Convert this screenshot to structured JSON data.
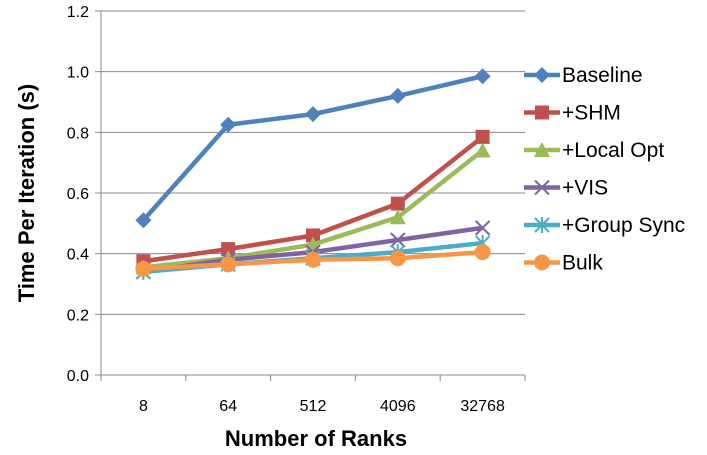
{
  "chart_data": {
    "type": "line",
    "title": "",
    "xlabel": "Number of Ranks",
    "ylabel": "Time Per Iteration (s)",
    "categories": [
      "8",
      "64",
      "512",
      "4096",
      "32768"
    ],
    "ylim": [
      0,
      1.2
    ],
    "yticks": [
      "0.0",
      "0.2",
      "0.4",
      "0.6",
      "0.8",
      "1.0",
      "1.2"
    ],
    "grid": true,
    "legend_position": "right",
    "series": [
      {
        "name": "Baseline",
        "color": "#4F81BD",
        "marker": "diamond",
        "values": [
          0.51,
          0.825,
          0.86,
          0.92,
          0.985
        ]
      },
      {
        "name": "+SHM",
        "color": "#C0504D",
        "marker": "square",
        "values": [
          0.375,
          0.415,
          0.46,
          0.565,
          0.785
        ]
      },
      {
        "name": "+Local Opt",
        "color": "#9BBB59",
        "marker": "triangle",
        "values": [
          0.355,
          0.385,
          0.43,
          0.52,
          0.74
        ]
      },
      {
        "name": "+VIS",
        "color": "#8064A2",
        "marker": "x",
        "values": [
          0.34,
          0.38,
          0.405,
          0.445,
          0.485
        ]
      },
      {
        "name": "+Group Sync",
        "color": "#4BACC6",
        "marker": "star",
        "values": [
          0.34,
          0.365,
          0.385,
          0.405,
          0.435
        ]
      },
      {
        "name": "Bulk",
        "color": "#F79646",
        "marker": "circle",
        "values": [
          0.35,
          0.365,
          0.38,
          0.385,
          0.405
        ]
      }
    ]
  }
}
